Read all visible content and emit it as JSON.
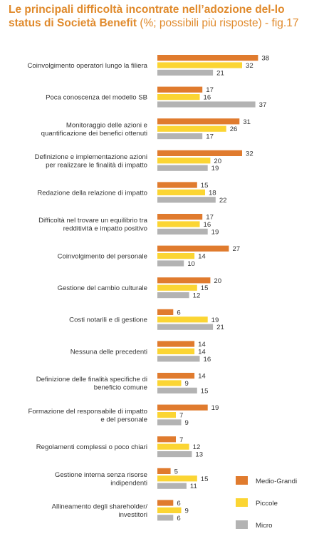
{
  "header": {
    "title_bold": "Le principali difficoltà incontrate nell’adozione del-lo status di Società Benefit",
    "title_light": " (%; possibili più risposte) - fig.17"
  },
  "chart_data": {
    "type": "bar",
    "orientation": "horizontal",
    "categories": [
      [
        "Coinvolgimento operatori lungo la filiera"
      ],
      [
        "Poca conoscenza del modello SB"
      ],
      [
        "Monitoraggio delle azioni e",
        "quantificazione dei benefici ottenuti"
      ],
      [
        "Definizione e implementazione azioni",
        "per realizzare le finalità di impatto"
      ],
      [
        "Redazione della relazione di impatto"
      ],
      [
        "Difficoltà nel trovare un equilibrio tra",
        "redditività e impatto positivo"
      ],
      [
        "Coinvolgimento del personale"
      ],
      [
        "Gestione del cambio culturale"
      ],
      [
        "Costi notarili e di gestione"
      ],
      [
        "Nessuna delle precedenti"
      ],
      [
        "Definizione delle finalità specifiche di",
        "beneficio comune"
      ],
      [
        "Formazione del responsabile di impatto",
        "e del personale"
      ],
      [
        "Regolamenti complessi o poco chiari"
      ],
      [
        "Gestione interna senza risorse",
        "indipendenti"
      ],
      [
        "Allineamento degli shareholder/",
        "investitori"
      ]
    ],
    "series": [
      {
        "name": "Medio-Grandi",
        "color": "#e07b2e",
        "values": [
          38,
          17,
          31,
          32,
          15,
          17,
          27,
          20,
          6,
          14,
          14,
          19,
          7,
          5,
          6
        ]
      },
      {
        "name": "Piccole",
        "color": "#fbd533",
        "values": [
          32,
          16,
          26,
          20,
          18,
          16,
          14,
          15,
          19,
          14,
          9,
          7,
          12,
          15,
          9
        ]
      },
      {
        "name": "Micro",
        "color": "#b3b3b3",
        "values": [
          21,
          37,
          17,
          19,
          22,
          19,
          10,
          12,
          21,
          16,
          15,
          9,
          13,
          11,
          6
        ]
      }
    ],
    "legend_position": "bottom-right",
    "grid": false
  }
}
